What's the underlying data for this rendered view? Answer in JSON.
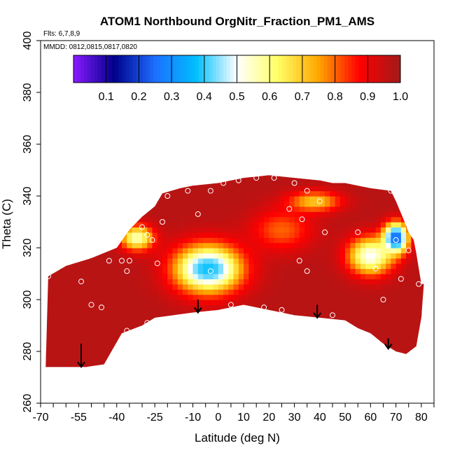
{
  "chart_data": {
    "type": "heatmap",
    "title": "ATOM1 Northbound OrgNitr_Fraction_PM1_AMS",
    "flights_label": "Flts: 6,7,8,9",
    "dates_label": "MMDD: 0812,0815,0817,0820",
    "xlabel": "Latitude (deg N)",
    "ylabel": "Theta (C)",
    "xlim": [
      -70,
      85
    ],
    "ylim": [
      260,
      400
    ],
    "x_ticks": [
      -70,
      -55,
      -40,
      -25,
      -10,
      0,
      10,
      20,
      30,
      40,
      50,
      60,
      70,
      80
    ],
    "x_tick_labels": [
      "-70",
      "-55",
      "-40",
      "-25",
      "-10",
      "0",
      "10",
      "20",
      "30",
      "40",
      "50",
      "60",
      "70",
      "80"
    ],
    "y_ticks": [
      260,
      280,
      300,
      320,
      340,
      360,
      380,
      400
    ],
    "y_tick_labels": [
      "260",
      "280",
      "300",
      "320",
      "340",
      "360",
      "380",
      "400"
    ],
    "colorbar": {
      "range": [
        0,
        1.0
      ],
      "tick_values": [
        0.1,
        0.2,
        0.3,
        0.4,
        0.5,
        0.6,
        0.7,
        0.8,
        0.9,
        1.0
      ],
      "tick_labels": [
        "0.1",
        "0.2",
        "0.3",
        "0.4",
        "0.5",
        "0.6",
        "0.7",
        "0.8",
        "0.9",
        "1.0"
      ],
      "colors": [
        "#8a1aff",
        "#00008b",
        "#1e6fff",
        "#00bfff",
        "#ffffff",
        "#ffff66",
        "#ffa500",
        "#ff0000",
        "#a11a1a"
      ]
    },
    "domain_top": [
      [
        -68,
        274
      ],
      [
        -67,
        309
      ],
      [
        -60,
        313
      ],
      [
        -50,
        316
      ],
      [
        -40,
        320
      ],
      [
        -35,
        327
      ],
      [
        -30,
        332
      ],
      [
        -25,
        336
      ],
      [
        -22,
        341
      ],
      [
        -15,
        343
      ],
      [
        -10,
        344
      ],
      [
        0,
        345
      ],
      [
        10,
        347
      ],
      [
        20,
        348
      ],
      [
        30,
        347
      ],
      [
        40,
        346
      ],
      [
        45,
        345
      ],
      [
        50,
        345
      ],
      [
        55,
        344
      ],
      [
        60,
        343
      ],
      [
        68,
        342
      ],
      [
        70,
        338
      ],
      [
        73,
        331
      ],
      [
        75,
        326
      ],
      [
        77,
        323
      ],
      [
        78,
        318
      ],
      [
        80,
        306
      ],
      [
        81,
        306
      ]
    ],
    "domain_bottom": [
      [
        -68,
        274
      ],
      [
        -52,
        274
      ],
      [
        -45,
        275
      ],
      [
        -38,
        287
      ],
      [
        -30,
        290
      ],
      [
        -25,
        293
      ],
      [
        -10,
        295
      ],
      [
        0,
        296
      ],
      [
        10,
        298
      ],
      [
        20,
        296
      ],
      [
        30,
        294
      ],
      [
        40,
        293
      ],
      [
        50,
        292
      ],
      [
        55,
        289
      ],
      [
        60,
        287
      ],
      [
        65,
        283
      ],
      [
        70,
        280
      ],
      [
        74,
        279
      ],
      [
        78,
        282
      ],
      [
        80,
        293
      ],
      [
        81,
        306
      ]
    ],
    "background_value": 0.97,
    "features": [
      {
        "center": [
          -4,
          312
        ],
        "radii": [
          17,
          12
        ],
        "value": 0.45
      },
      {
        "center": [
          -4,
          312
        ],
        "radii": [
          9,
          6
        ],
        "value": 0.38
      },
      {
        "center": [
          25,
          327
        ],
        "radii": [
          15,
          10
        ],
        "value": 0.8
      },
      {
        "center": [
          -32,
          324
        ],
        "radii": [
          8,
          6
        ],
        "value": 0.55
      },
      {
        "center": [
          60,
          317
        ],
        "radii": [
          11,
          9
        ],
        "value": 0.5
      },
      {
        "center": [
          70,
          324
        ],
        "radii": [
          6,
          7
        ],
        "value": 0.22
      },
      {
        "center": [
          38,
          338
        ],
        "radii": [
          13,
          5
        ],
        "value": 0.7
      }
    ],
    "arrows": [
      {
        "lat": -54,
        "theta_top": 283,
        "theta_tip": 274
      },
      {
        "lat": -8,
        "theta_top": 300,
        "theta_tip": 295
      },
      {
        "lat": 39,
        "theta_top": 298,
        "theta_tip": 293
      },
      {
        "lat": 67,
        "theta_top": 285,
        "theta_tip": 281
      }
    ],
    "sample_points": [
      [
        -67,
        309
      ],
      [
        -54,
        307
      ],
      [
        -50,
        298
      ],
      [
        -46,
        297
      ],
      [
        -43,
        315
      ],
      [
        -38,
        315
      ],
      [
        -36,
        311
      ],
      [
        -35,
        315
      ],
      [
        -30,
        328
      ],
      [
        -28,
        325
      ],
      [
        -26,
        323
      ],
      [
        -24,
        314
      ],
      [
        -22,
        330
      ],
      [
        -20,
        340
      ],
      [
        -12,
        342
      ],
      [
        -8,
        333
      ],
      [
        -3,
        342
      ],
      [
        2,
        345
      ],
      [
        8,
        346
      ],
      [
        15,
        347
      ],
      [
        22,
        347
      ],
      [
        30,
        345
      ],
      [
        35,
        342
      ],
      [
        28,
        335
      ],
      [
        33,
        331
      ],
      [
        32,
        315
      ],
      [
        35,
        311
      ],
      [
        40,
        338
      ],
      [
        42,
        326
      ],
      [
        45,
        294
      ],
      [
        25,
        296
      ],
      [
        18,
        297
      ],
      [
        5,
        298
      ],
      [
        -3,
        311
      ],
      [
        -36,
        288
      ],
      [
        -28,
        291
      ],
      [
        55,
        326
      ],
      [
        60,
        316
      ],
      [
        62,
        312
      ],
      [
        65,
        300
      ],
      [
        68,
        342
      ],
      [
        70,
        323
      ],
      [
        72,
        308
      ],
      [
        75,
        319
      ],
      [
        79,
        306
      ],
      [
        72,
        278
      ]
    ]
  }
}
